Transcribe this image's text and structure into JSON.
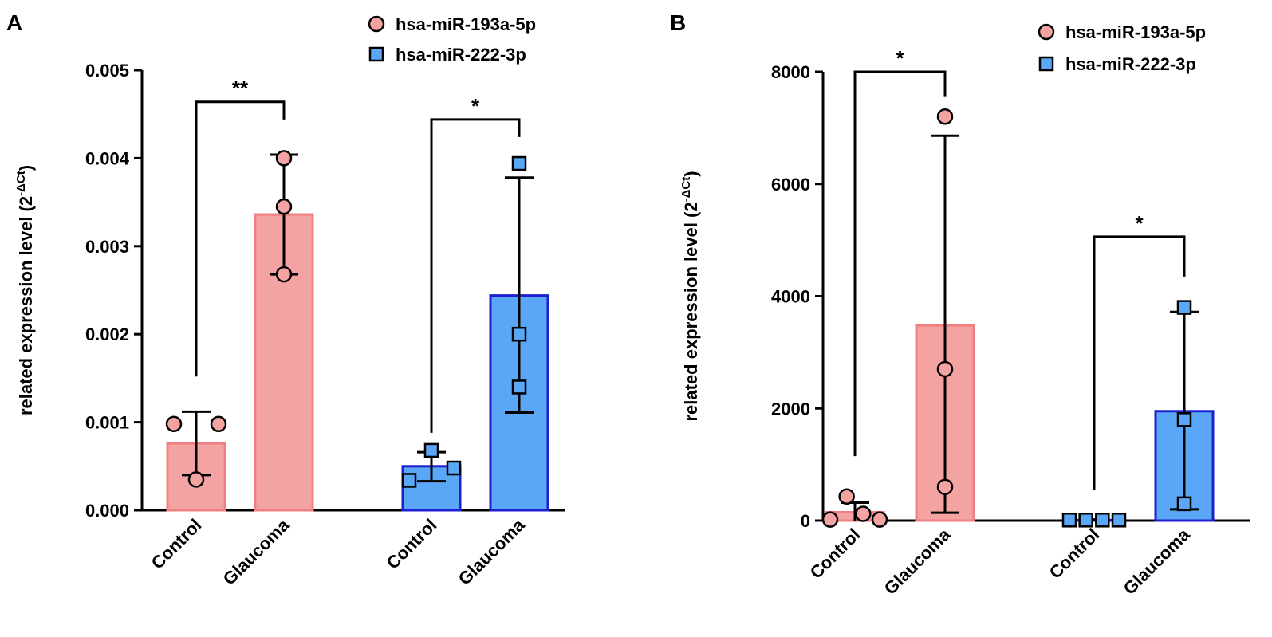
{
  "chart_data": [
    {
      "type": "bar",
      "panel_label": "A",
      "title": "",
      "xlabel": "",
      "ylabel": "related expression level (2",
      "ylabel_sup": "-ΔCt",
      "ylabel_close": ")",
      "ylim": [
        0,
        0.005
      ],
      "yticks": [
        "0.000",
        "0.001",
        "0.002",
        "0.003",
        "0.004",
        "0.005"
      ],
      "ytick_values": [
        0,
        0.001,
        0.002,
        0.003,
        0.004,
        0.005
      ],
      "legend_position": "top-right",
      "legend": [
        {
          "name": "hsa-miR-193a-5p",
          "marker": "circle",
          "color": "#f4a3a3",
          "edge": "#f08080"
        },
        {
          "name": "hsa-miR-222-3p",
          "marker": "square",
          "color": "#5aa7f7",
          "edge": "#1f1fcf"
        }
      ],
      "categories": [
        "Control",
        "Glaucoma",
        "Control",
        "Glaucoma"
      ],
      "bars": [
        {
          "category": "Control",
          "series": "hsa-miR-193a-5p",
          "mean": 0.00076,
          "sd_low": 0.0004,
          "sd_high": 0.00112,
          "points": [
            0.00098,
            0.00098,
            0.00035
          ]
        },
        {
          "category": "Glaucoma",
          "series": "hsa-miR-193a-5p",
          "mean": 0.00336,
          "sd_low": 0.00268,
          "sd_high": 0.00404,
          "points": [
            0.004,
            0.00345,
            0.00268
          ]
        },
        {
          "category": "Control",
          "series": "hsa-miR-222-3p",
          "mean": 0.0005,
          "sd_low": 0.00033,
          "sd_high": 0.00066,
          "points": [
            0.00068,
            0.00048,
            0.00034
          ]
        },
        {
          "category": "Glaucoma",
          "series": "hsa-miR-222-3p",
          "mean": 0.00244,
          "sd_low": 0.00111,
          "sd_high": 0.00378,
          "points": [
            0.00394,
            0.002,
            0.0014
          ]
        }
      ],
      "significance": [
        {
          "from": 0,
          "to": 1,
          "label": "**",
          "y": 0.00464,
          "left_drop": 0.00152,
          "right_drop": 0.00444
        },
        {
          "from": 2,
          "to": 3,
          "label": "*",
          "y": 0.00444,
          "left_drop": 0.00088,
          "right_drop": 0.00424
        }
      ]
    },
    {
      "type": "bar",
      "panel_label": "B",
      "title": "",
      "xlabel": "",
      "ylabel": "related expression level (2",
      "ylabel_sup": "-ΔCt",
      "ylabel_close": ")",
      "ylim": [
        0,
        8000
      ],
      "yticks": [
        "0",
        "2000",
        "4000",
        "6000",
        "8000"
      ],
      "ytick_values": [
        0,
        2000,
        4000,
        6000,
        8000
      ],
      "legend_position": "top-right",
      "legend": [
        {
          "name": "hsa-miR-193a-5p",
          "marker": "circle",
          "color": "#f4a3a3",
          "edge": "#f08080"
        },
        {
          "name": "hsa-miR-222-3p",
          "marker": "square",
          "color": "#5aa7f7",
          "edge": "#1f1fcf"
        }
      ],
      "categories": [
        "Control",
        "Glaucoma",
        "Control",
        "Glaucoma"
      ],
      "bars": [
        {
          "category": "Control",
          "series": "hsa-miR-193a-5p",
          "mean": 150,
          "sd_low": 0,
          "sd_high": 320,
          "points": [
            20,
            430,
            120,
            20
          ]
        },
        {
          "category": "Glaucoma",
          "series": "hsa-miR-193a-5p",
          "mean": 3480,
          "sd_low": 140,
          "sd_high": 6860,
          "points": [
            7200,
            2700,
            600
          ]
        },
        {
          "category": "Control",
          "series": "hsa-miR-222-3p",
          "mean": 10,
          "sd_low": 0,
          "sd_high": 20,
          "points": [
            10,
            10,
            10,
            10
          ]
        },
        {
          "category": "Glaucoma",
          "series": "hsa-miR-222-3p",
          "mean": 1950,
          "sd_low": 200,
          "sd_high": 3720,
          "points": [
            3800,
            1800,
            300
          ]
        }
      ],
      "significance": [
        {
          "from": 0,
          "to": 1,
          "label": "*",
          "y": 8000,
          "left_drop": 1150,
          "right_drop": 7550
        },
        {
          "from": 2,
          "to": 3,
          "label": "*",
          "y": 5060,
          "left_drop": 550,
          "right_drop": 4350
        }
      ]
    }
  ]
}
